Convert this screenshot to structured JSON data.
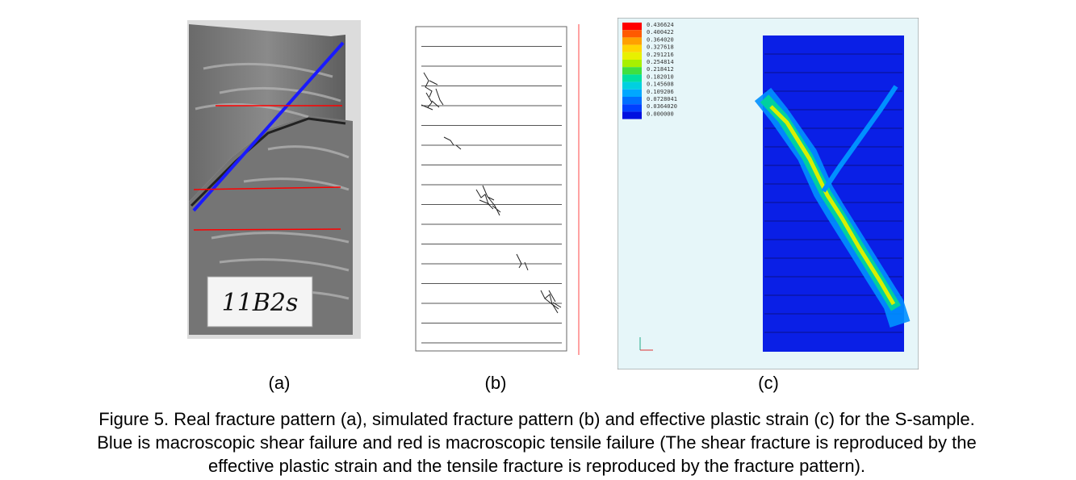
{
  "panels": {
    "a": {
      "label": "(a)",
      "sample_label": "11B2s",
      "line_colors": {
        "shear": "#1a1aff",
        "tensile": "#ff0000"
      }
    },
    "b": {
      "label": "(b)"
    },
    "c": {
      "label": "(c)",
      "legend_values": [
        "0.436624",
        "0.400422",
        "0.364020",
        "0.327618",
        "0.291216",
        "0.254814",
        "0.218412",
        "0.182010",
        "0.145608",
        "0.109206",
        "0.0728041",
        "0.0364020",
        "0.000000"
      ],
      "legend_colors": [
        "#ff0000",
        "#ff5a00",
        "#ffa000",
        "#ffd400",
        "#e8f000",
        "#a8f000",
        "#40e040",
        "#00e0a0",
        "#00d0e0",
        "#00a8ff",
        "#0070ff",
        "#0040ff",
        "#0010e0"
      ]
    }
  },
  "caption": {
    "lines": [
      "Figure 5. Real fracture pattern (a), simulated fracture pattern (b) and effective plastic strain (c) for the S-sample.",
      "Blue is macroscopic shear failure and red is macroscopic tensile failure (The shear fracture is reproduced by the",
      "effective plastic strain and the tensile fracture is reproduced by the fracture pattern)."
    ]
  }
}
